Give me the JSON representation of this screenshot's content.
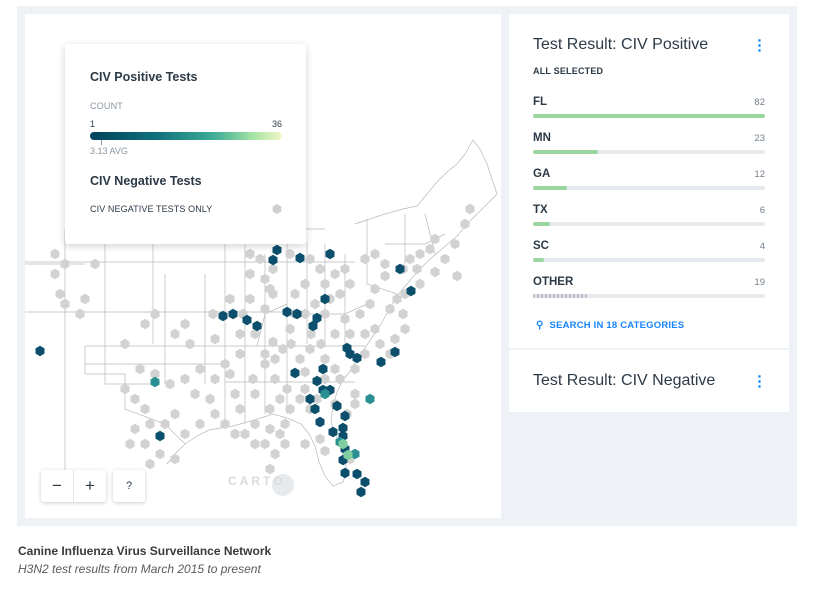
{
  "legend": {
    "positive_title": "CIV Positive Tests",
    "count_label": "COUNT",
    "range_min": "1",
    "range_max": "36",
    "avg_label": "3.13 AVG",
    "negative_title": "CIV Negative Tests",
    "negative_row_label": "CIV NEGATIVE TESTS ONLY",
    "negative_color": "#cfcfcf"
  },
  "map": {
    "zoom_out_label": "−",
    "zoom_in_label": "+",
    "help_label": "?",
    "attribution": "CARTO"
  },
  "widget_positive": {
    "title": "Test Result: CIV Positive",
    "menu_icon": "more-vertical-icon",
    "subtitle": "ALL SELECTED",
    "categories": [
      {
        "name": "FL",
        "value": 82,
        "fraction": 1.0
      },
      {
        "name": "MN",
        "value": 23,
        "fraction": 0.28
      },
      {
        "name": "GA",
        "value": 12,
        "fraction": 0.146
      },
      {
        "name": "TX",
        "value": 6,
        "fraction": 0.073
      },
      {
        "name": "SC",
        "value": 4,
        "fraction": 0.049
      },
      {
        "name": "OTHER",
        "value": 19,
        "fraction": 0.232
      }
    ],
    "search_label": "SEARCH IN 18 CATEGORIES"
  },
  "widget_negative": {
    "title": "Test Result: CIV Negative",
    "menu_icon": "more-vertical-icon"
  },
  "caption": {
    "title": "Canine Influenza Virus Surveillance Network",
    "subtitle": "H3N2 test results from March 2015 to present"
  },
  "colors": {
    "accent": "#1785fb",
    "bar_fill": "#9ad7a0",
    "hex_dark": "#0b4f6c",
    "hex_mid": "#2a8f92",
    "hex_light": "#7fcfa0",
    "hex_gray": "#d2d2d2"
  }
}
